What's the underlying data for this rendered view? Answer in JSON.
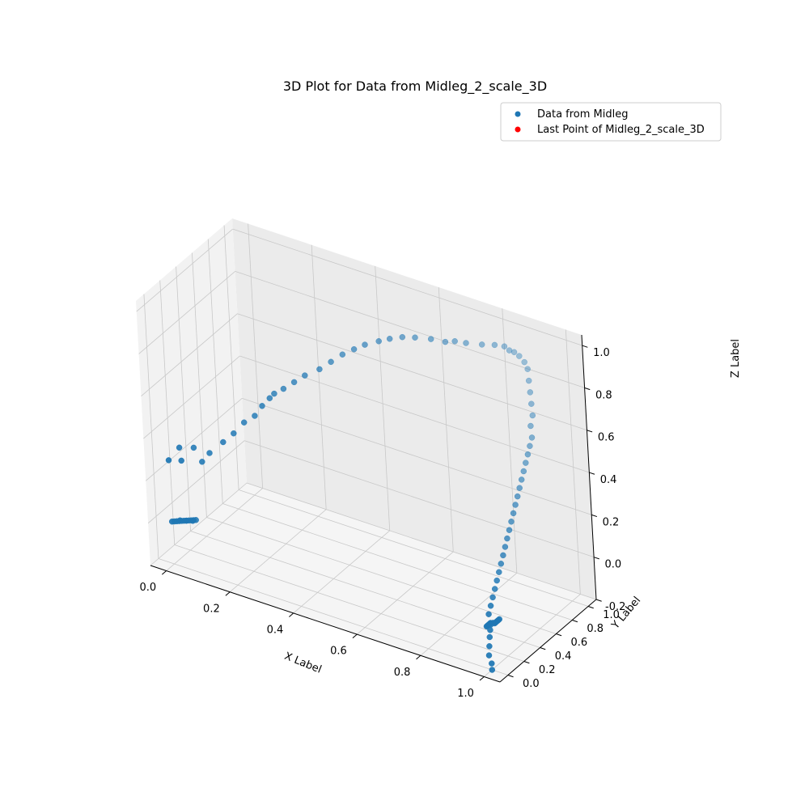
{
  "chart_data": {
    "type": "scatter",
    "title": "3D Plot for Data from Midleg_2_scale_3D",
    "xlabel": "X Label",
    "ylabel": "Y Label",
    "zlabel": "Z Label",
    "xticks": [
      "0.0",
      "0.2",
      "0.4",
      "0.6",
      "0.8",
      "1.0"
    ],
    "yticks": [
      "0.0",
      "0.2",
      "0.4",
      "0.6",
      "0.8",
      "1.0"
    ],
    "zticks": [
      "-0.2",
      "0.0",
      "0.2",
      "0.4",
      "0.6",
      "0.8",
      "1.0"
    ],
    "xlim": [
      -0.05,
      1.05
    ],
    "ylim": [
      -0.1,
      1.1
    ],
    "zlim": [
      -0.2,
      1.05
    ],
    "grid": true,
    "legend_position": "top-right",
    "colors": {
      "series": "#1f77b4",
      "last_point": "#ff0000"
    },
    "series": [
      {
        "name": "Data from Midleg",
        "points": [
          [
            0.0,
            0.0,
            0.0
          ],
          [
            0.005,
            0.01,
            0.0
          ],
          [
            0.01,
            0.02,
            0.0
          ],
          [
            0.015,
            0.03,
            0.0
          ],
          [
            0.02,
            0.04,
            0.0
          ],
          [
            0.025,
            0.05,
            0.0
          ],
          [
            0.03,
            0.06,
            0.0
          ],
          [
            0.035,
            0.07,
            0.0
          ],
          [
            0.04,
            0.08,
            0.0
          ],
          [
            0.045,
            0.09,
            0.0
          ],
          [
            0.05,
            0.1,
            0.0
          ],
          [
            0.015,
            0.04,
            0.0
          ],
          [
            0.03,
            0.06,
            0.0
          ],
          [
            0.045,
            0.08,
            0.0
          ],
          [
            0.0,
            0.0,
            0.29
          ],
          [
            0.02,
            0.06,
            0.34
          ],
          [
            0.03,
            0.04,
            0.29
          ],
          [
            0.05,
            0.12,
            0.335
          ],
          [
            0.08,
            0.1,
            0.29
          ],
          [
            0.1,
            0.12,
            0.335
          ],
          [
            0.14,
            0.14,
            0.4
          ],
          [
            0.17,
            0.16,
            0.45
          ],
          [
            0.2,
            0.18,
            0.51
          ],
          [
            0.23,
            0.2,
            0.55
          ],
          [
            0.25,
            0.22,
            0.6
          ],
          [
            0.27,
            0.24,
            0.64
          ],
          [
            0.28,
            0.26,
            0.66
          ],
          [
            0.3,
            0.3,
            0.68
          ],
          [
            0.33,
            0.32,
            0.72
          ],
          [
            0.36,
            0.34,
            0.76
          ],
          [
            0.4,
            0.37,
            0.8
          ],
          [
            0.43,
            0.4,
            0.84
          ],
          [
            0.46,
            0.43,
            0.88
          ],
          [
            0.49,
            0.46,
            0.91
          ],
          [
            0.52,
            0.48,
            0.94
          ],
          [
            0.56,
            0.5,
            0.97
          ],
          [
            0.59,
            0.52,
            0.99
          ],
          [
            0.62,
            0.56,
            1.0
          ],
          [
            0.65,
            0.6,
            1.0
          ],
          [
            0.69,
            0.64,
            1.0
          ],
          [
            0.73,
            0.66,
            1.0
          ],
          [
            0.75,
            0.7,
            1.0
          ],
          [
            0.78,
            0.72,
            1.0
          ],
          [
            0.82,
            0.76,
            1.0
          ],
          [
            0.85,
            0.8,
            1.0
          ],
          [
            0.87,
            0.84,
            0.99
          ],
          [
            0.88,
            0.86,
            0.97
          ],
          [
            0.89,
            0.88,
            0.96
          ],
          [
            0.9,
            0.9,
            0.94
          ],
          [
            0.91,
            0.92,
            0.91
          ],
          [
            0.93,
            0.88,
            0.9
          ],
          [
            0.94,
            0.85,
            0.86
          ],
          [
            0.95,
            0.82,
            0.82
          ],
          [
            0.96,
            0.79,
            0.78
          ],
          [
            0.97,
            0.76,
            0.74
          ],
          [
            0.97,
            0.73,
            0.7
          ],
          [
            0.98,
            0.7,
            0.66
          ],
          [
            0.98,
            0.67,
            0.63
          ],
          [
            0.98,
            0.64,
            0.6
          ],
          [
            0.98,
            0.61,
            0.57
          ],
          [
            0.98,
            0.58,
            0.54
          ],
          [
            0.98,
            0.55,
            0.51
          ],
          [
            0.98,
            0.52,
            0.48
          ],
          [
            0.98,
            0.49,
            0.45
          ],
          [
            0.98,
            0.46,
            0.42
          ],
          [
            0.98,
            0.43,
            0.39
          ],
          [
            0.98,
            0.4,
            0.36
          ],
          [
            0.98,
            0.37,
            0.33
          ],
          [
            0.98,
            0.34,
            0.3
          ],
          [
            0.98,
            0.31,
            0.27
          ],
          [
            0.98,
            0.28,
            0.24
          ],
          [
            0.98,
            0.25,
            0.21
          ],
          [
            0.98,
            0.22,
            0.18
          ],
          [
            0.98,
            0.19,
            0.15
          ],
          [
            0.98,
            0.16,
            0.12
          ],
          [
            0.98,
            0.13,
            0.09
          ],
          [
            0.98,
            0.1,
            0.06
          ],
          [
            0.98,
            0.07,
            0.03
          ],
          [
            0.99,
            0.05,
            0.0
          ],
          [
            0.99,
            0.04,
            -0.03
          ],
          [
            0.99,
            0.03,
            -0.06
          ],
          [
            0.99,
            0.02,
            -0.1
          ],
          [
            0.99,
            0.01,
            -0.14
          ],
          [
            1.0,
            0.0,
            -0.17
          ],
          [
            1.0,
            0.0,
            -0.2
          ],
          [
            0.99,
            0.0,
            0.0
          ],
          [
            0.99,
            0.01,
            0.0
          ],
          [
            0.99,
            0.02,
            0.0
          ],
          [
            0.99,
            0.03,
            0.0
          ],
          [
            0.99,
            0.04,
            0.0
          ],
          [
            0.99,
            0.05,
            0.0
          ],
          [
            1.0,
            0.06,
            0.0
          ],
          [
            1.0,
            0.07,
            0.0
          ],
          [
            1.0,
            0.08,
            0.0
          ],
          [
            1.0,
            0.09,
            0.0
          ],
          [
            1.0,
            0.1,
            0.0
          ],
          [
            1.0,
            0.11,
            0.0
          ],
          [
            0.995,
            0.03,
            0.0
          ],
          [
            0.995,
            0.06,
            0.0
          ],
          [
            1.0,
            0.12,
            0.0
          ]
        ]
      },
      {
        "name": "Last Point of Midleg_2_scale_3D",
        "points": []
      }
    ]
  }
}
